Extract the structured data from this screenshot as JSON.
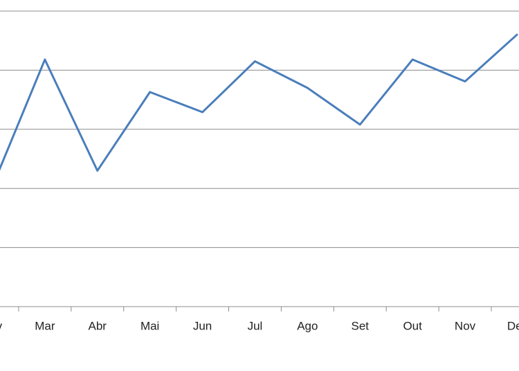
{
  "chart_data": {
    "type": "line",
    "categories": [
      "Fev",
      "Mar",
      "Abr",
      "Mai",
      "Jun",
      "Jul",
      "Ago",
      "Set",
      "Out",
      "Nov",
      "Dez"
    ],
    "values": [
      2.03,
      4.18,
      2.3,
      3.63,
      3.29,
      4.15,
      3.7,
      3.08,
      4.18,
      3.81,
      4.61
    ],
    "color": "#4a7ebb",
    "ylim": [
      0,
      5
    ],
    "yticks": [
      0,
      1,
      2,
      3,
      4,
      5
    ],
    "grid": true
  }
}
